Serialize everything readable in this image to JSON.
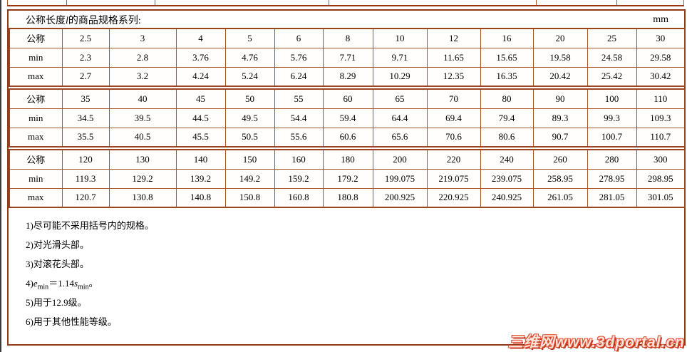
{
  "header": {
    "title_pre": "公称长度",
    "title_var": "l",
    "title_post": "的商品规格系列:",
    "unit": "mm"
  },
  "table": {
    "row_labels": {
      "nominal": "公称",
      "min": "min",
      "max": "max"
    },
    "blocks": [
      {
        "nominal": [
          "2.5",
          "3",
          "4",
          "5",
          "6",
          "8",
          "10",
          "12",
          "16",
          "20",
          "25",
          "30"
        ],
        "min": [
          "2.3",
          "2.8",
          "3.76",
          "4.76",
          "5.76",
          "7.71",
          "9.71",
          "11.65",
          "15.65",
          "19.58",
          "24.58",
          "29.58"
        ],
        "max": [
          "2.7",
          "3.2",
          "4.24",
          "5.24",
          "6.24",
          "8.29",
          "10.29",
          "12.35",
          "16.35",
          "20.42",
          "25.42",
          "30.42"
        ]
      },
      {
        "nominal": [
          "35",
          "40",
          "45",
          "50",
          "55",
          "60",
          "65",
          "70",
          "80",
          "90",
          "100",
          "110"
        ],
        "min": [
          "34.5",
          "39.5",
          "44.5",
          "49.5",
          "54.4",
          "59.4",
          "64.4",
          "69.4",
          "79.4",
          "89.3",
          "99.3",
          "109.3"
        ],
        "max": [
          "35.5",
          "40.5",
          "45.5",
          "50.5",
          "55.6",
          "60.6",
          "65.6",
          "70.6",
          "80.6",
          "90.7",
          "100.7",
          "110.7"
        ]
      },
      {
        "nominal": [
          "120",
          "130",
          "140",
          "150",
          "160",
          "180",
          "200",
          "220",
          "240",
          "260",
          "280",
          "300"
        ],
        "min": [
          "119.3",
          "129.2",
          "139.2",
          "149.2",
          "159.2",
          "179.2",
          "199.075",
          "219.075",
          "239.075",
          "258.95",
          "278.95",
          "298.95"
        ],
        "max": [
          "120.7",
          "130.8",
          "140.8",
          "150.8",
          "160.8",
          "180.8",
          "200.925",
          "220.925",
          "240.925",
          "261.05",
          "281.05",
          "301.05"
        ]
      }
    ]
  },
  "footnotes": {
    "n1": "1)尽可能不采用括号内的规格。",
    "n2": "2)对光滑头部。",
    "n3": "3)对滚花头部。",
    "n4": {
      "pre": "4)",
      "e": "e",
      "esub": "min",
      "eq": "＝1.14",
      "s": "s",
      "ssub": "min",
      "end": "。"
    },
    "n5": "5)用于12.9级。",
    "n6": "6)用于其他性能等级。"
  },
  "watermark": {
    "text": "三维网www.3dportal.cn"
  },
  "colors": {
    "outer_border": "#8e3a17",
    "cell_border": "#aa5429",
    "watermark_red": "#df4a2e"
  }
}
